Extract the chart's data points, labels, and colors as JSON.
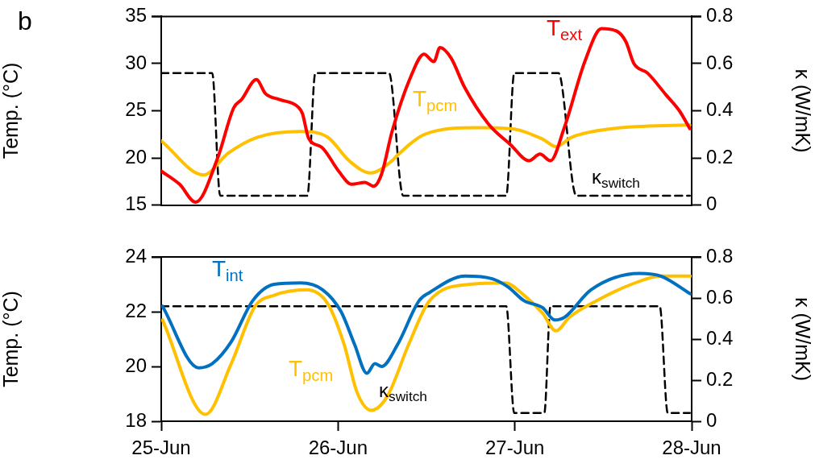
{
  "chart_data": [
    {
      "type": "line",
      "annotations": [
        "b"
      ],
      "ylabel": "Temp. (°C)",
      "y2label": "κ (W/mK)",
      "xlim": [
        "--06-25",
        "--06-28"
      ],
      "xticks": [
        {
          "value": "--06-25",
          "label": null
        },
        {
          "value": "--06-26",
          "label": null
        },
        {
          "value": "--06-27",
          "label": null
        },
        {
          "value": "--06-28",
          "label": null
        }
      ],
      "ylim": [
        15,
        35
      ],
      "yticks": [
        15,
        20,
        25,
        30,
        35
      ],
      "y2lim": [
        0,
        0.8
      ],
      "y2ticks": [
        0,
        0.2,
        0.4,
        0.6,
        0.8
      ],
      "tick_labels": "y",
      "legend": false,
      "marker": "none",
      "grid": false,
      "series": [
        {
          "name": "T$_{ext}$",
          "color": "#ff0000",
          "x": [
            "--06-25T00:00",
            "--06-25T02:30",
            "--06-25T04:40",
            "--06-25T07:40",
            "--06-25T09:50",
            "--06-25T10:55",
            "--06-25T12:55",
            "--06-25T14:10",
            "--06-25T16:00",
            "--06-25T18:35",
            "--06-25T19:10",
            "--06-25T20:00",
            "--06-25T21:50",
            "--06-26T00:05",
            "--06-26T01:50",
            "--06-26T03:40",
            "--06-26T04:50",
            "--06-26T05:55",
            "--06-26T07:20",
            "--06-26T09:55",
            "--06-26T11:40",
            "--06-26T13:00",
            "--06-26T13:50",
            "--06-26T15:20",
            "--06-26T17:10",
            "--06-26T20:25",
            "--06-26T23:25",
            "--06-27T01:55",
            "--06-27T03:25",
            "--06-27T04:50",
            "--06-27T06:40",
            "--06-27T09:35",
            "--06-27T11:45",
            "--06-27T13:55",
            "--06-27T15:05",
            "--06-27T16:10",
            "--06-27T18:00",
            "--06-27T20:30",
            "--06-27T22:20",
            "--06-27T23:45"
          ],
          "values": [
            18.6,
            17.2,
            15.3,
            20.0,
            25.3,
            26.2,
            28.3,
            26.8,
            26.2,
            25.4,
            24.7,
            22.1,
            21.1,
            18.6,
            17.2,
            17.4,
            17.0,
            18.3,
            22.8,
            28.7,
            31.0,
            30.2,
            31.7,
            30.6,
            27.5,
            23.6,
            21.4,
            19.7,
            20.4,
            19.7,
            23.1,
            30.4,
            33.7,
            33.4,
            32.3,
            30.0,
            29.0,
            26.7,
            25.0,
            23.1
          ]
        },
        {
          "name": "T$_{pcm}$",
          "color": "#ffc000",
          "x": [
            "--06-25T00:00",
            "--06-25T05:45",
            "--06-25T09:05",
            "--06-25T13:05",
            "--06-25T18:55",
            "--06-25T22:35",
            "--06-26T01:30",
            "--06-26T04:25",
            "--06-26T07:20",
            "--06-26T08:05",
            "--06-26T11:45",
            "--06-26T19:00",
            "--06-26T23:25",
            "--06-27T03:45",
            "--06-27T05:35",
            "--06-27T07:45",
            "--06-27T13:15",
            "--06-27T23:45"
          ],
          "values": [
            21.8,
            18.2,
            20.5,
            22.2,
            22.8,
            22.2,
            19.7,
            18.4,
            19.7,
            20.3,
            22.5,
            23.2,
            23.1,
            22.0,
            21.2,
            22.2,
            23.1,
            23.5
          ]
        },
        {
          "name": "κ$_{switch}$",
          "color": "#000000",
          "axis": "y2",
          "line_style": "dashed",
          "x": [
            "--06-25T00:00",
            "--06-25T06:55",
            "--06-25T08:00",
            "--06-25T19:50",
            "--06-25T20:55",
            "--06-26T06:55",
            "--06-26T08:50",
            "--06-26T22:50",
            "--06-26T23:55",
            "--06-27T05:55",
            "--06-27T08:20",
            "--06-27T23:45"
          ],
          "values": [
            0.56,
            0.56,
            0.04,
            0.04,
            0.56,
            0.56,
            0.04,
            0.04,
            0.56,
            0.56,
            0.04,
            0.04
          ]
        }
      ]
    },
    {
      "type": "line",
      "ylabel": "Temp. (°C)",
      "y2label": "κ (W/mK)",
      "xlim": [
        "--06-25",
        "--06-28"
      ],
      "xticks": [
        {
          "value": "--06-25",
          "label": "25-Jun"
        },
        {
          "value": "--06-26",
          "label": "26-Jun"
        },
        {
          "value": "--06-27",
          "label": "27-Jun"
        },
        {
          "value": "--06-28",
          "label": "28-Jun"
        }
      ],
      "ylim": [
        18,
        24
      ],
      "yticks": [
        18,
        20,
        22,
        24
      ],
      "y2lim": [
        0,
        0.8
      ],
      "y2ticks": [
        0,
        0.2,
        0.4,
        0.6,
        0.8
      ],
      "legend": false,
      "marker": "none",
      "grid": false,
      "series": [
        {
          "name": "T$_{int}$",
          "color": "#0070c0",
          "x": [
            "--06-25T00:10",
            "--06-25T05:05",
            "--06-25T06:55",
            "--06-25T09:30",
            "--06-25T12:25",
            "--06-25T15:20",
            "--06-25T18:55",
            "--06-25T21:55",
            "--06-26T00:25",
            "--06-26T02:15",
            "--06-26T03:55",
            "--06-26T05:00",
            "--06-26T05:55",
            "--06-26T08:05",
            "--06-26T11:00",
            "--06-26T12:25",
            "--06-26T17:15",
            "--06-26T20:55",
            "--06-26T23:05",
            "--06-27T01:15",
            "--06-27T03:45",
            "--06-27T05:25",
            "--06-27T06:45",
            "--06-27T10:20",
            "--06-27T16:55",
            "--06-27T19:50",
            "--06-27T23:50"
          ],
          "values": [
            22.2,
            19.95,
            20.1,
            20.9,
            22.4,
            23.0,
            23.05,
            22.8,
            22.0,
            20.8,
            19.75,
            20.1,
            20.0,
            20.8,
            22.4,
            22.7,
            23.3,
            23.2,
            22.9,
            22.4,
            22.15,
            21.7,
            21.8,
            22.8,
            23.4,
            23.3,
            22.65
          ]
        },
        {
          "name": "T$_{pcm}$",
          "color": "#ffc000",
          "x": [
            "--06-25T00:10",
            "--06-25T06:00",
            "--06-25T09:30",
            "--06-25T12:45",
            "--06-25T15:20",
            "--06-25T19:40",
            "--06-25T22:35",
            "--06-26T00:50",
            "--06-26T02:35",
            "--06-26T04:30",
            "--06-26T06:40",
            "--06-26T09:35",
            "--06-26T12:25",
            "--06-26T17:55",
            "--06-26T22:40",
            "--06-27T01:15",
            "--06-27T03:45",
            "--06-27T05:35",
            "--06-27T07:25",
            "--06-27T11:05",
            "--06-27T15:50",
            "--06-27T19:50",
            "--06-27T23:50"
          ],
          "values": [
            21.7,
            18.25,
            20.1,
            22.2,
            22.6,
            22.8,
            22.3,
            20.8,
            19.05,
            18.4,
            18.9,
            20.8,
            22.4,
            23.0,
            23.05,
            22.6,
            21.95,
            21.3,
            21.8,
            22.4,
            23.0,
            23.3,
            23.3
          ]
        },
        {
          "name": "κ$_{switch}$",
          "color": "#000000",
          "axis": "y2",
          "line_style": "dashed",
          "x": [
            "--06-25T00:00",
            "--06-26T22:50",
            "--06-26T23:55",
            "--06-27T04:00",
            "--06-27T04:50",
            "--06-27T19:40",
            "--06-27T20:45",
            "--06-27T23:45"
          ],
          "values": [
            0.56,
            0.56,
            0.04,
            0.04,
            0.56,
            0.56,
            0.04,
            0.04
          ]
        }
      ]
    }
  ]
}
